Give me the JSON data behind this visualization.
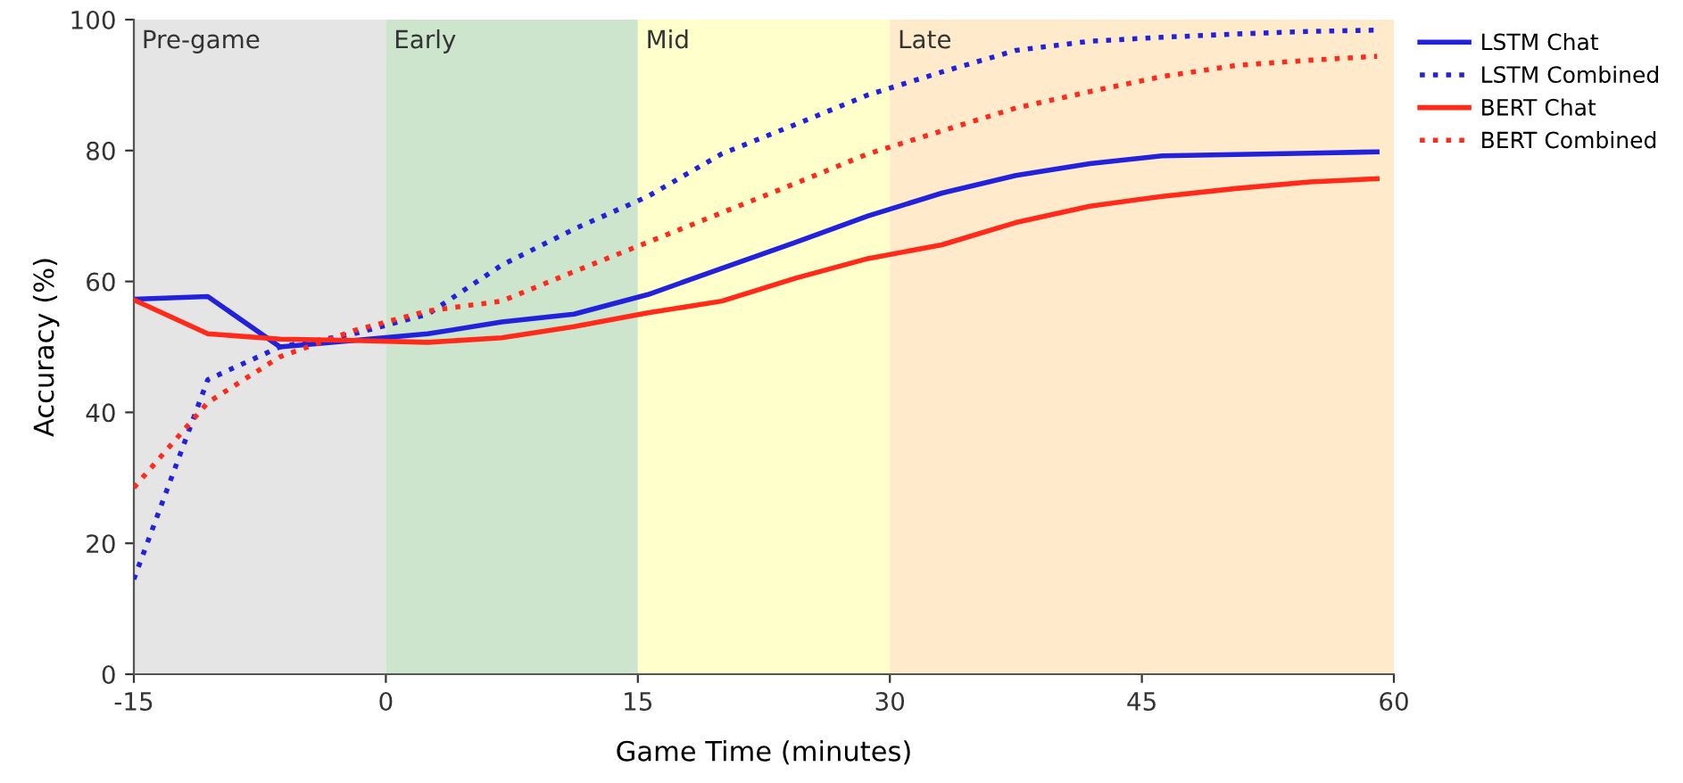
{
  "chart_data": {
    "type": "line",
    "xlabel": "Game Time (minutes)",
    "ylabel": "Accuracy (%)",
    "x": [
      -15,
      -10.6,
      -6.3,
      -1.9,
      2.5,
      6.9,
      11.2,
      15.6,
      20,
      24.4,
      28.7,
      33.1,
      37.5,
      41.9,
      46.2,
      50.6,
      55,
      59
    ],
    "xlim": [
      -15,
      60
    ],
    "xticks": [
      -15,
      0,
      15,
      30,
      45,
      60
    ],
    "ylim": [
      0,
      100
    ],
    "yticks": [
      0,
      20,
      40,
      60,
      80,
      100
    ],
    "grid": false,
    "legend": "right",
    "marker": "none",
    "series": [
      {
        "name": "LSTM Chat",
        "color": "#2222dd",
        "line_style": "solid",
        "values": [
          57.3,
          57.7,
          50,
          51,
          52,
          53.8,
          55,
          58,
          62,
          66,
          70,
          73.5,
          76.2,
          78,
          79.2,
          79.4,
          79.6,
          79.8
        ]
      },
      {
        "name": "LSTM Combined",
        "color": "#2222dd",
        "line_style": "dotted",
        "values": [
          14.5,
          45,
          50,
          52,
          55,
          62.5,
          68,
          73,
          79.5,
          84,
          88.5,
          92,
          95.3,
          96.7,
          97.3,
          97.8,
          98.2,
          98.4
        ]
      },
      {
        "name": "BERT Chat",
        "color": "#ff2a1a",
        "line_style": "solid",
        "values": [
          57.2,
          52,
          51.2,
          51,
          50.7,
          51.4,
          53.1,
          55.2,
          57,
          60.5,
          63.5,
          65.6,
          69,
          71.5,
          73,
          74.2,
          75.2,
          75.7
        ]
      },
      {
        "name": "BERT Combined",
        "color": "#ff2a1a",
        "line_style": "dotted",
        "values": [
          28.5,
          41.5,
          48.5,
          52.5,
          55.5,
          57,
          61.5,
          66,
          70.5,
          75,
          79.5,
          83,
          86.5,
          89,
          91.3,
          93,
          93.8,
          94.4
        ]
      }
    ],
    "bands": [
      {
        "axis": "x",
        "from": -15,
        "to": 0,
        "label": "Pre-game",
        "color": "#e5e5e5"
      },
      {
        "axis": "x",
        "from": 0,
        "to": 15,
        "label": "Early",
        "color": "#cde5cc"
      },
      {
        "axis": "x",
        "from": 15,
        "to": 30,
        "label": "Mid",
        "color": "#ffffcc"
      },
      {
        "axis": "x",
        "from": 30,
        "to": 60,
        "label": "Late",
        "color": "#ffebcc"
      }
    ]
  }
}
